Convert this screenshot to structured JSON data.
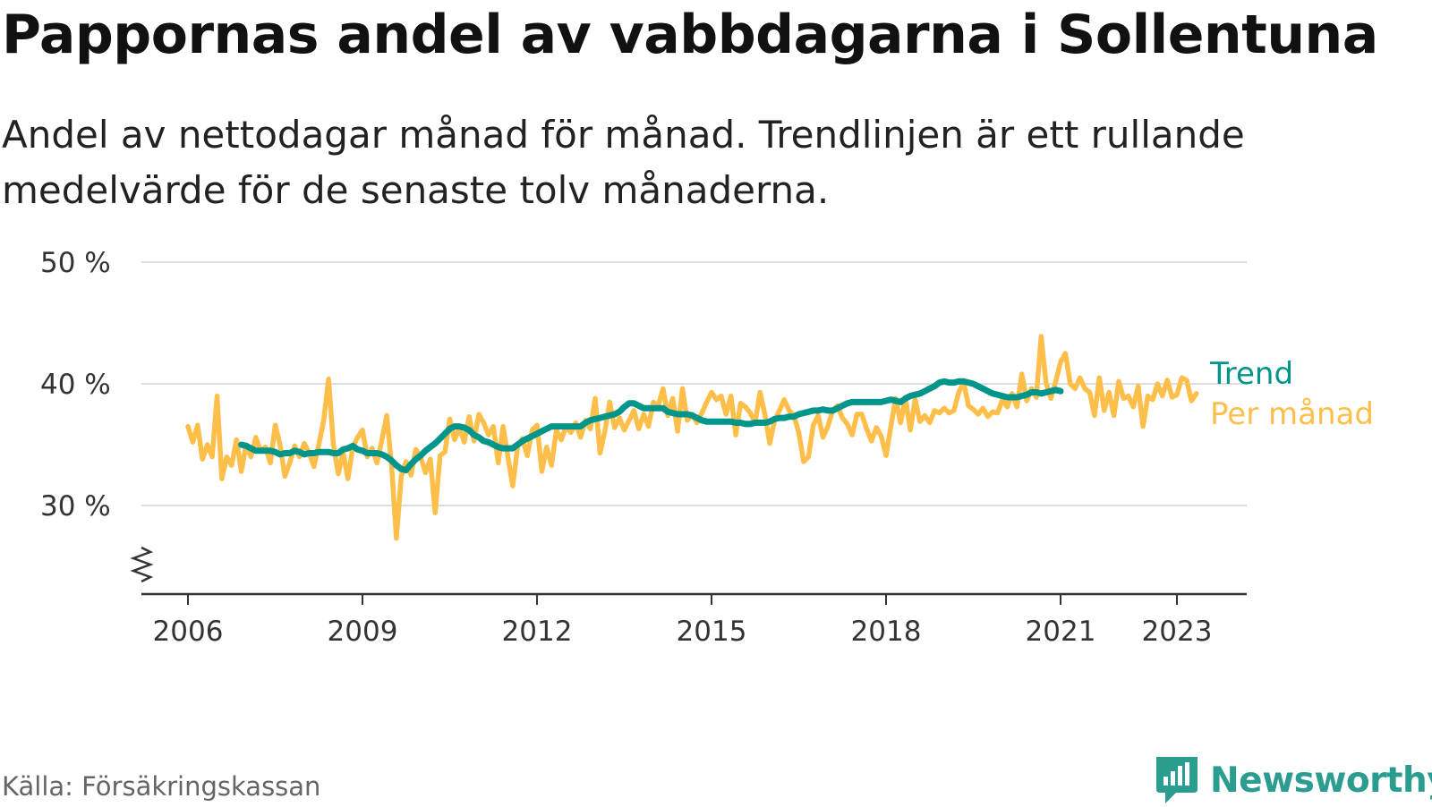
{
  "title": "Pappornas andel av vabbdagarna i Sollentuna",
  "subtitle": "Andel av nettodagar månad för månad. Trendlinjen är ett rullande medelvärde för de senaste tolv månaderna.",
  "source": "Källa: Försäkringskassan",
  "brand": {
    "name": "Newsworthy",
    "icon": "newsworthy-logo-icon"
  },
  "colors": {
    "trend": "#00958a",
    "monthly": "#fdbf4a",
    "grid": "#dddddd",
    "axis": "#333333"
  },
  "chart_data": {
    "type": "line",
    "y_axis": {
      "ticks": [
        30,
        40,
        50
      ],
      "tick_labels": [
        "30 %",
        "40 %",
        "50 %"
      ],
      "range": [
        24,
        50
      ],
      "broken_axis": true
    },
    "x_axis": {
      "ticks": [
        2006,
        2009,
        2012,
        2015,
        2018,
        2021,
        2023
      ],
      "tick_labels": [
        "2006",
        "2009",
        "2012",
        "2015",
        "2018",
        "2021",
        "2023"
      ],
      "range": [
        2005.2,
        2024.2
      ]
    },
    "grid": true,
    "legend": "right-end labels",
    "series": [
      {
        "name": "Per månad",
        "start": "2006-01",
        "values": [
          36.5,
          35.2,
          36.6,
          33.8,
          35.0,
          34.0,
          39.0,
          32.2,
          34.0,
          33.3,
          35.4,
          32.8,
          35.0,
          34.0,
          35.6,
          34.5,
          34.8,
          33.5,
          36.6,
          35.0,
          32.4,
          33.5,
          34.9,
          34.0,
          35.1,
          34.3,
          33.2,
          35.0,
          37.0,
          40.4,
          35.0,
          32.6,
          34.4,
          32.2,
          34.8,
          35.6,
          36.2,
          34.0,
          34.7,
          33.5,
          35.4,
          37.4,
          33.3,
          27.3,
          32.4,
          33.6,
          32.5,
          34.6,
          34.0,
          32.7,
          33.8,
          29.4,
          34.1,
          34.4,
          37.1,
          35.4,
          36.4,
          35.2,
          37.3,
          35.3,
          37.5,
          36.8,
          35.8,
          36.5,
          33.5,
          36.5,
          34.0,
          31.6,
          34.8,
          35.5,
          34.1,
          36.2,
          36.6,
          32.8,
          34.8,
          33.3,
          36.2,
          35.4,
          36.5,
          36.0,
          36.8,
          35.6,
          37.0,
          36.3,
          38.8,
          34.3,
          36.1,
          38.5,
          36.4,
          37.2,
          36.2,
          37.0,
          37.8,
          36.3,
          37.5,
          36.5,
          38.5,
          38.2,
          39.6,
          37.4,
          38.8,
          36.1,
          39.6,
          37.0,
          37.5,
          36.8,
          37.6,
          38.5,
          39.3,
          38.7,
          39.0,
          37.5,
          39.0,
          35.8,
          38.4,
          38.1,
          37.6,
          36.8,
          39.3,
          37.5,
          35.1,
          37.0,
          37.8,
          38.7,
          37.8,
          37.4,
          36.0,
          33.6,
          34.0,
          36.6,
          37.4,
          35.6,
          36.5,
          37.8,
          38.2,
          37.2,
          36.7,
          35.8,
          37.5,
          37.5,
          36.3,
          35.3,
          36.4,
          35.7,
          34.1,
          36.5,
          38.8,
          36.8,
          38.8,
          36.2,
          38.7,
          36.9,
          37.4,
          36.8,
          37.8,
          37.6,
          38.0,
          37.6,
          37.8,
          39.3,
          40.1,
          38.2,
          37.9,
          37.5,
          38.0,
          37.3,
          37.7,
          37.6,
          38.7,
          38.1,
          39.2,
          38.1,
          40.8,
          38.6,
          39.6,
          38.9,
          43.9,
          40.1,
          38.8,
          40.2,
          41.8,
          42.5,
          40.0,
          39.6,
          40.5,
          39.6,
          39.3,
          37.4,
          40.5,
          37.8,
          39.3,
          37.4,
          40.2,
          38.8,
          39.0,
          38.1,
          39.8,
          36.5,
          39.0,
          38.7,
          40.0,
          39.0,
          40.3,
          38.9,
          39.1,
          40.5,
          40.3,
          38.6,
          39.2
        ]
      },
      {
        "name": "Trend",
        "start": "2006-12",
        "values": [
          35.0,
          34.9,
          34.7,
          34.5,
          34.5,
          34.5,
          34.5,
          34.4,
          34.2,
          34.3,
          34.3,
          34.5,
          34.4,
          34.2,
          34.3,
          34.3,
          34.4,
          34.4,
          34.4,
          34.3,
          34.3,
          34.6,
          34.7,
          34.9,
          34.6,
          34.5,
          34.3,
          34.3,
          34.3,
          34.2,
          34.0,
          33.7,
          33.3,
          33.0,
          32.9,
          33.4,
          33.8,
          34.1,
          34.5,
          34.8,
          35.1,
          35.5,
          35.9,
          36.3,
          36.5,
          36.5,
          36.4,
          36.2,
          35.8,
          35.6,
          35.3,
          35.2,
          35.0,
          34.8,
          34.7,
          34.7,
          34.7,
          35.0,
          35.3,
          35.5,
          35.7,
          35.9,
          36.1,
          36.3,
          36.5,
          36.5,
          36.5,
          36.5,
          36.5,
          36.5,
          36.5,
          36.8,
          37.0,
          37.1,
          37.2,
          37.3,
          37.4,
          37.5,
          37.7,
          38.1,
          38.4,
          38.4,
          38.2,
          38.0,
          38.0,
          38.0,
          38.0,
          38.0,
          37.7,
          37.6,
          37.5,
          37.5,
          37.5,
          37.4,
          37.2,
          37.0,
          36.9,
          36.9,
          36.9,
          36.9,
          36.9,
          36.9,
          36.8,
          36.8,
          36.7,
          36.7,
          36.8,
          36.8,
          36.8,
          36.9,
          37.1,
          37.2,
          37.2,
          37.3,
          37.3,
          37.5,
          37.6,
          37.7,
          37.8,
          37.8,
          37.9,
          37.8,
          37.8,
          38.0,
          38.2,
          38.4,
          38.5,
          38.5,
          38.5,
          38.5,
          38.5,
          38.5,
          38.5,
          38.6,
          38.7,
          38.6,
          38.5,
          38.8,
          39.0,
          39.1,
          39.2,
          39.4,
          39.6,
          39.8,
          40.1,
          40.2,
          40.1,
          40.1,
          40.2,
          40.2,
          40.1,
          40.0,
          39.8,
          39.6,
          39.4,
          39.2,
          39.1,
          39.0,
          38.9,
          38.9,
          38.9,
          39.0,
          39.1,
          39.3,
          39.3,
          39.2,
          39.3,
          39.4,
          39.5,
          39.4
        ]
      }
    ]
  }
}
